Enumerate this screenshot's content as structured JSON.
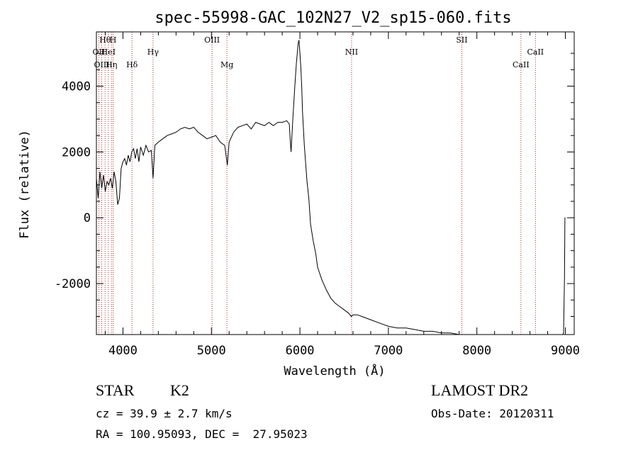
{
  "chart_data": {
    "type": "line",
    "title": "spec-55998-GAC_102N27_V2_sp15-060.fits",
    "xlabel": "Wavelength (Å)",
    "ylabel": "Flux (relative)",
    "xlim": [
      3700,
      9100
    ],
    "ylim": [
      -3550,
      5650
    ],
    "x_ticks": [
      4000,
      5000,
      6000,
      7000,
      8000,
      9000
    ],
    "y_ticks": [
      -2000,
      0,
      2000,
      4000
    ],
    "grid": false,
    "line_color": "#000000",
    "marker_color": "#aa2222",
    "series": [
      {
        "x": [
          3700,
          3720,
          3740,
          3760,
          3780,
          3800,
          3820,
          3840,
          3860,
          3880,
          3900,
          3920,
          3940,
          3960,
          3980,
          4000,
          4020,
          4040,
          4060,
          4080,
          4100,
          4120,
          4140,
          4160,
          4180,
          4200,
          4230,
          4260,
          4290,
          4320,
          4340,
          4360,
          4400,
          4450,
          4500,
          4550,
          4600,
          4650,
          4700,
          4750,
          4800,
          4850,
          4900,
          4950,
          5000,
          5050,
          5100,
          5150,
          5180,
          5200,
          5250,
          5300,
          5350,
          5400,
          5450,
          5500,
          5550,
          5600,
          5650,
          5700,
          5750,
          5800,
          5850,
          5880,
          5890,
          5900,
          5920,
          5940,
          5960,
          5980,
          5990,
          6000,
          6010,
          6020,
          6030,
          6050,
          6080,
          6100,
          6120,
          6150,
          6180,
          6200,
          6250,
          6300,
          6350,
          6400,
          6450,
          6500,
          6550,
          6580,
          6600,
          6650,
          6700,
          6800,
          6900,
          7000,
          7100,
          7200,
          7300,
          7400,
          7500,
          7600,
          7700,
          7800,
          7900,
          8000,
          8100,
          8200,
          8300,
          8400,
          8500,
          8550,
          8600,
          8650,
          8700,
          8750,
          8800,
          8850,
          8900,
          8950,
          8970,
          8980,
          8990,
          8995,
          9000
        ],
        "y": [
          1200,
          600,
          1400,
          900,
          1300,
          800,
          1100,
          1000,
          1200,
          900,
          1400,
          1100,
          400,
          600,
          1500,
          1700,
          1800,
          1600,
          1900,
          1700,
          2000,
          2100,
          1800,
          2100,
          1700,
          2150,
          1900,
          2200,
          2000,
          2050,
          1200,
          2200,
          2300,
          2400,
          2500,
          2550,
          2600,
          2700,
          2750,
          2700,
          2750,
          2600,
          2500,
          2400,
          2450,
          2500,
          2300,
          2200,
          1600,
          2300,
          2600,
          2750,
          2800,
          2850,
          2700,
          2900,
          2850,
          2800,
          2900,
          2800,
          2900,
          2900,
          2950,
          2850,
          2400,
          2000,
          3000,
          3900,
          4700,
          5300,
          5400,
          5000,
          4600,
          4000,
          3200,
          2200,
          1100,
          600,
          -200,
          -700,
          -1100,
          -1500,
          -1900,
          -2200,
          -2450,
          -2600,
          -2700,
          -2800,
          -2900,
          -3000,
          -2950,
          -2950,
          -3000,
          -3100,
          -3200,
          -3300,
          -3350,
          -3350,
          -3400,
          -3450,
          -3450,
          -3500,
          -3500,
          -3550,
          -3550,
          -3600,
          -3650,
          -3700,
          -3750,
          -3800,
          -3800,
          -3900,
          -3900,
          -3850,
          -3850,
          -3900,
          -3950,
          -3950,
          -3950,
          -4000,
          -4000,
          -3500,
          -1800,
          0,
          0
        ]
      }
    ],
    "line_markers": [
      {
        "label": "Hθ",
        "x": 3798,
        "row": 1
      },
      {
        "label": "H",
        "x": 3889,
        "row": 1
      },
      {
        "label": "OII",
        "x": 3727,
        "row": 2
      },
      {
        "label": "HeI",
        "x": 3835,
        "row": 2
      },
      {
        "label": "OIII",
        "x": 3760,
        "row": 3
      },
      {
        "label": "Hη",
        "x": 3870,
        "row": 3
      },
      {
        "label": "Hδ",
        "x": 4102,
        "row": 3
      },
      {
        "label": "Hγ",
        "x": 4340,
        "row": 2
      },
      {
        "label": "OIII",
        "x": 5007,
        "row": 1
      },
      {
        "label": "Mg",
        "x": 5175,
        "row": 3
      },
      {
        "label": "NII",
        "x": 6584,
        "row": 2
      },
      {
        "label": "SII",
        "x": 7830,
        "row": 1
      },
      {
        "label": "CaII",
        "x": 8498,
        "row": 3
      },
      {
        "label": "CaII",
        "x": 8662,
        "row": 2
      }
    ]
  },
  "info": {
    "object_class": "STAR",
    "subclass": "K2",
    "survey": "LAMOST DR2",
    "cz": "cz = 39.9 ± 2.7 km/s",
    "obs_date": "Obs-Date: 20120311",
    "radec": "RA = 100.95093, DEC =  27.95023"
  }
}
